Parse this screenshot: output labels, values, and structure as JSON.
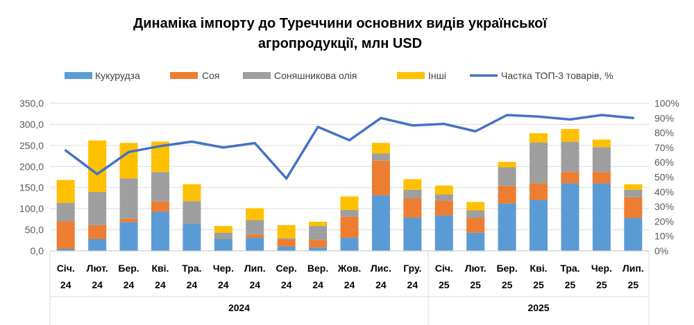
{
  "chart_data": {
    "type": "bar",
    "stacked": true,
    "title": "Динаміка імпорту до Туреччини основних видів української агропродукції, млн USD",
    "xlabel": "",
    "ylabel": "",
    "categories": [
      "Січ. 24",
      "Лют. 24",
      "Бер. 24",
      "Кві. 24",
      "Тра. 24",
      "Чер. 24",
      "Лип. 24",
      "Сер. 24",
      "Вер. 24",
      "Жов. 24",
      "Лис. 24",
      "Гру. 24",
      "Січ. 25",
      "Лют. 25",
      "Бер. 25",
      "Кві. 25",
      "Тра. 25",
      "Чер. 25",
      "Лип. 25"
    ],
    "category_groups": [
      {
        "label": "2024",
        "count": 12
      },
      {
        "label": "2025",
        "count": 7
      }
    ],
    "series": [
      {
        "name": "Кукурудза",
        "type": "bar",
        "axis": "left",
        "color": "#5B9BD5",
        "values": [
          5,
          28,
          68,
          93,
          64,
          28,
          31,
          10,
          8,
          31,
          132,
          79,
          84,
          43,
          112,
          121,
          160,
          160,
          78
        ]
      },
      {
        "name": "Соя",
        "type": "bar",
        "axis": "left",
        "color": "#ED7D31",
        "values": [
          65,
          33,
          8,
          24,
          0,
          0,
          7,
          17,
          18,
          50,
          82,
          45,
          35,
          35,
          42,
          39,
          27,
          27,
          49
        ]
      },
      {
        "name": "Соняшникова олія",
        "type": "bar",
        "axis": "left",
        "color": "#A5A5A5",
        "pattern": "dotted",
        "values": [
          44,
          79,
          96,
          70,
          54,
          15,
          35,
          3,
          33,
          16,
          17,
          21,
          15,
          18,
          44,
          97,
          72,
          59,
          18
        ]
      },
      {
        "name": "Інші",
        "type": "bar",
        "axis": "left",
        "color": "#FFC000",
        "values": [
          54,
          122,
          84,
          72,
          40,
          16,
          28,
          31,
          10,
          32,
          25,
          25,
          21,
          20,
          13,
          22,
          30,
          18,
          13
        ]
      },
      {
        "name": "Частка ТОП-3 товарів, %",
        "type": "line",
        "axis": "right",
        "color": "#4472C4",
        "values": [
          68,
          52,
          67,
          71,
          74,
          70,
          73,
          49,
          84,
          75,
          90,
          85,
          86,
          81,
          92,
          91,
          89,
          92,
          90
        ]
      }
    ],
    "ylim": [
      0,
      350
    ],
    "yticks": [
      "0,0",
      "50,0",
      "100,0",
      "150,0",
      "200,0",
      "250,0",
      "300,0",
      "350,0"
    ],
    "y2lim": [
      0,
      100
    ],
    "y2ticks": [
      "0%",
      "10%",
      "20%",
      "30%",
      "40%",
      "50%",
      "60%",
      "70%",
      "80%",
      "90%",
      "100%"
    ],
    "legend_position": "top",
    "grid": true
  }
}
